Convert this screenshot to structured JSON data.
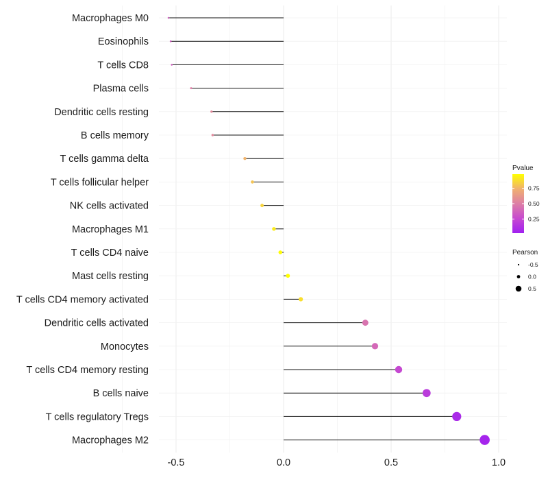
{
  "chart_data": {
    "type": "lollipop",
    "title": "",
    "xlabel": "",
    "ylabel": "",
    "xlim": [
      -0.6,
      1.05
    ],
    "xticks": [
      -0.5,
      0.0,
      0.5,
      1.0
    ],
    "xtick_labels": [
      "-0.5",
      "0.0",
      "0.5",
      "1.0"
    ],
    "grid": true,
    "categories": [
      "Macrophages M0",
      "Eosinophils",
      "T cells CD8",
      "Plasma cells",
      "Dendritic cells resting",
      "B cells memory",
      "T cells gamma delta",
      "T cells follicular helper",
      "NK cells activated",
      "Macrophages M1",
      "T cells CD4 naive",
      "Mast cells resting",
      "T cells CD4 memory activated",
      "Dendritic cells activated",
      "Monocytes",
      "T cells CD4 memory resting",
      "B cells naive",
      "T cells regulatory  Tregs ",
      "Macrophages M2"
    ],
    "pearson": [
      -0.535,
      -0.525,
      -0.52,
      -0.43,
      -0.335,
      -0.33,
      -0.18,
      -0.145,
      -0.1,
      -0.045,
      -0.015,
      0.02,
      0.08,
      0.38,
      0.425,
      0.535,
      0.665,
      0.805,
      0.935
    ],
    "pvalue": [
      0.35,
      0.35,
      0.35,
      0.5,
      0.55,
      0.55,
      0.75,
      0.8,
      0.85,
      0.92,
      0.97,
      0.98,
      0.88,
      0.45,
      0.4,
      0.25,
      0.18,
      0.08,
      0.05
    ],
    "legends": {
      "color": {
        "title": "Pvalue",
        "ticks": [
          0.75,
          0.5,
          0.25
        ],
        "tick_labels": [
          "0.75",
          "0.50",
          "0.25"
        ],
        "range": [
          0.02,
          0.98
        ],
        "gradient": [
          "#a020f0",
          "#c74ad0",
          "#dd7fa6",
          "#f0b070",
          "#ffff00"
        ]
      },
      "size": {
        "title": "Pearson",
        "values": [
          -0.5,
          0.0,
          0.5
        ],
        "labels": [
          "-0.5",
          "0.0",
          "0.5"
        ]
      }
    }
  }
}
